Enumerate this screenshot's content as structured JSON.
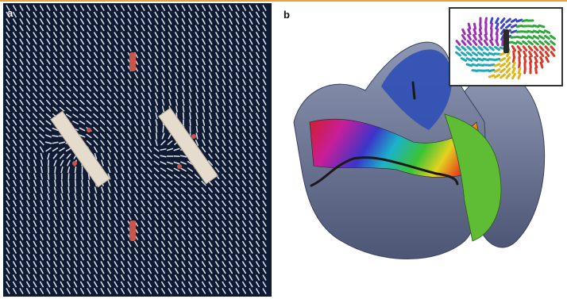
{
  "figure": {
    "panel_a": {
      "label": "a"
    },
    "panel_b": {
      "label": "b"
    }
  },
  "colors": {
    "accent_bar": "#e8a33a",
    "panel_a_background": "#0f1a33",
    "director_lines": "#d9dde6",
    "colloid_rods": "#e6dccd",
    "defect_marks": "#c9564a"
  }
}
